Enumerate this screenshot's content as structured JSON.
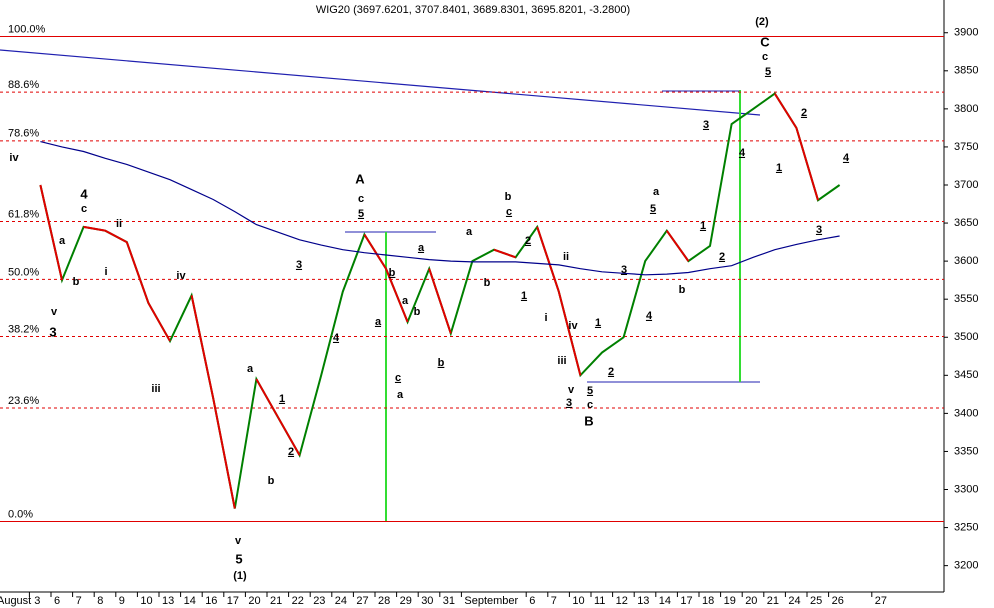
{
  "chart_data": {
    "type": "line",
    "title": "WIG20 (3697.6201, 3707.8401, 3689.8301, 3695.8201, -3.2800)",
    "categories": [
      "August 3",
      "6",
      "7",
      "8",
      "9",
      "10",
      "13",
      "14",
      "16",
      "17",
      "20",
      "21",
      "22",
      "23",
      "24",
      "27",
      "28",
      "29",
      "30",
      "31",
      "September",
      null,
      null,
      "6",
      "7",
      "10",
      "11",
      "12",
      "13",
      "14",
      "17",
      "18",
      "19",
      "20",
      "21",
      "24",
      "25",
      "26",
      null,
      "27"
    ],
    "series": [
      {
        "color": "#008000",
        "down_color": "#e00000",
        "values": [
          3700,
          3575,
          3645,
          3640,
          3625,
          3545,
          3495,
          3555,
          3420,
          3275,
          3445,
          3395,
          3345,
          3450,
          3560,
          3635,
          3590,
          3520,
          3590,
          3505,
          3600,
          3615,
          3605,
          3645,
          3560,
          3450,
          3480,
          3500,
          3600,
          3640,
          3600,
          3620,
          3780,
          3800,
          3820,
          3775,
          3680,
          3700,
          null,
          null
        ]
      },
      {
        "color": "#00008b",
        "values": [
          3757,
          3750,
          3744,
          3735,
          3727,
          3717,
          3707,
          3694,
          3681,
          3665,
          3648,
          3638,
          3628,
          3621,
          3615,
          3611,
          3608,
          3605,
          3602,
          3600,
          3599,
          3599,
          3599,
          3597,
          3595,
          3590,
          3586,
          3584,
          3582,
          3583,
          3585,
          3590,
          3594,
          3605,
          3615,
          3622,
          3628,
          3633,
          null,
          null
        ]
      }
    ],
    "ylim": [
      3168,
      3943
    ],
    "yticks": [
      3200,
      3250,
      3300,
      3350,
      3400,
      3450,
      3500,
      3550,
      3600,
      3650,
      3700,
      3750,
      3800,
      3850,
      3900
    ],
    "fib_levels": [
      {
        "value": 3895,
        "label": "100.0%"
      },
      {
        "value": 3822,
        "label": "88.6%"
      },
      {
        "value": 3758,
        "label": "78.6%"
      },
      {
        "value": 3652,
        "label": "61.8%"
      },
      {
        "value": 3576,
        "label": "50.0%"
      },
      {
        "value": 3501,
        "label": "38.2%"
      },
      {
        "value": 3407,
        "label": "23.6%"
      },
      {
        "value": 3258,
        "label": "0.0%"
      }
    ],
    "fib_color": "#e00000",
    "annotations": [
      {
        "text": "iv",
        "color": "#000080"
      },
      {
        "text": "a",
        "color": "#000080"
      },
      {
        "text": "4",
        "color": "#cc33cc"
      },
      {
        "text": "c",
        "color": "#000080"
      },
      {
        "text": "ii",
        "color": "#000080"
      },
      {
        "text": "i",
        "color": "#000080"
      },
      {
        "text": "b",
        "color": "#000080"
      },
      {
        "text": "iv",
        "color": "#000080"
      },
      {
        "text": "v",
        "color": "#000080"
      },
      {
        "text": "3",
        "color": "#cc33cc"
      },
      {
        "text": "iii",
        "color": "#000080"
      },
      {
        "text": "a",
        "color": "#000080"
      },
      {
        "text": "1",
        "color": "#e00000"
      },
      {
        "text": "2",
        "color": "#e00000"
      },
      {
        "text": "b",
        "color": "#000080"
      },
      {
        "text": "3",
        "color": "#e00000"
      },
      {
        "text": "4",
        "color": "#e00000"
      },
      {
        "text": "A",
        "color": "#cc33cc"
      },
      {
        "text": "c",
        "color": "#000080"
      },
      {
        "text": "5",
        "color": "#e00000"
      },
      {
        "text": "a",
        "color": "#e00000"
      },
      {
        "text": "b",
        "color": "#e00000"
      },
      {
        "text": "a",
        "color": "#008000"
      },
      {
        "text": "b",
        "color": "#008000"
      },
      {
        "text": "a",
        "color": "#e00000"
      },
      {
        "text": "c",
        "color": "#e00000"
      },
      {
        "text": "a",
        "color": "#000080"
      },
      {
        "text": "b",
        "color": "#e00000"
      },
      {
        "text": "a",
        "color": "#008000"
      },
      {
        "text": "b",
        "color": "#008000"
      },
      {
        "text": "b",
        "color": "#000080"
      },
      {
        "text": "c",
        "color": "#e00000"
      },
      {
        "text": "2",
        "color": "#e00000"
      },
      {
        "text": "1",
        "color": "#e00000"
      },
      {
        "text": "ii",
        "color": "#008000"
      },
      {
        "text": "i",
        "color": "#008000"
      },
      {
        "text": "iv",
        "color": "#008000"
      },
      {
        "text": "iii",
        "color": "#008000"
      },
      {
        "text": "v",
        "color": "#008000"
      },
      {
        "text": "3",
        "color": "#e00000"
      },
      {
        "text": "5",
        "color": "#e00000"
      },
      {
        "text": "c",
        "color": "#000080"
      },
      {
        "text": "B",
        "color": "#cc33cc"
      },
      {
        "text": "1",
        "color": "#e00000"
      },
      {
        "text": "2",
        "color": "#e00000"
      },
      {
        "text": "3",
        "color": "#e00000"
      },
      {
        "text": "4",
        "color": "#e00000"
      },
      {
        "text": "5",
        "color": "#e00000"
      },
      {
        "text": "a",
        "color": "#000080"
      },
      {
        "text": "b",
        "color": "#000080"
      },
      {
        "text": "1",
        "color": "#e00000"
      },
      {
        "text": "2",
        "color": "#e00000"
      },
      {
        "text": "3",
        "color": "#e00000"
      },
      {
        "text": "4",
        "color": "#e00000"
      },
      {
        "text": "(2)",
        "color": "#008000"
      },
      {
        "text": "C",
        "color": "#cc33cc"
      },
      {
        "text": "c",
        "color": "#000080"
      },
      {
        "text": "5",
        "color": "#e00000"
      },
      {
        "text": "2",
        "color": "#e00000"
      },
      {
        "text": "1",
        "color": "#e00000"
      },
      {
        "text": "4",
        "color": "#e00000"
      },
      {
        "text": "3",
        "color": "#e00000"
      },
      {
        "text": "v",
        "color": "#000080"
      },
      {
        "text": "5",
        "color": "#cc33cc"
      },
      {
        "text": "(1)",
        "color": "#008000"
      }
    ]
  }
}
